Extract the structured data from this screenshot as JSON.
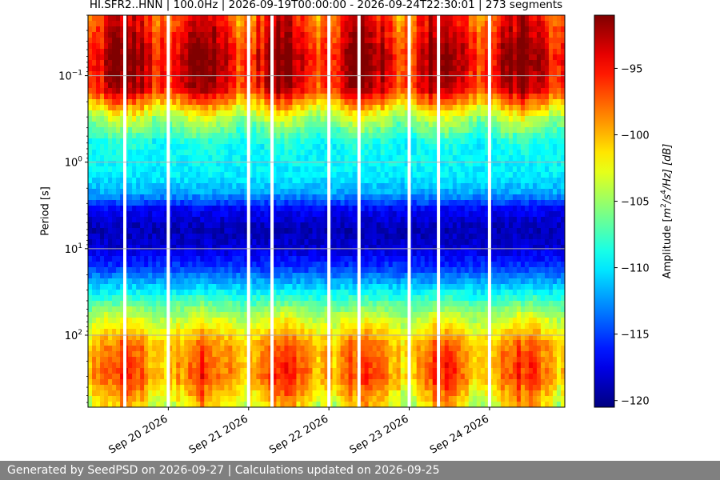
{
  "chart_data": {
    "type": "heatmap",
    "title": "HI.SFR2..HNN | 100.0Hz | 2026-09-19T00:00:00 - 2026-09-24T22:30:01 | 273 segments",
    "xlabel": "",
    "ylabel": "Period [s]",
    "y_scale": "log",
    "y_inverted": true,
    "ylim": [
      0.02,
      680
    ],
    "y_ticks": [
      {
        "value": 0.1,
        "base": "10",
        "exp": "−1"
      },
      {
        "value": 1,
        "base": "10",
        "exp": "0"
      },
      {
        "value": 10,
        "base": "10",
        "exp": "1"
      },
      {
        "value": 100,
        "base": "10",
        "exp": "2"
      }
    ],
    "xlim": [
      "2026-09-19T00:00",
      "2026-09-24T22:30"
    ],
    "x_ticks": [
      {
        "value": "2026-09-20T00:00",
        "label": "Sep 20 2026"
      },
      {
        "value": "2026-09-21T00:00",
        "label": "Sep 21 2026"
      },
      {
        "value": "2026-09-22T00:00",
        "label": "Sep 22 2026"
      },
      {
        "value": "2026-09-23T00:00",
        "label": "Sep 23 2026"
      },
      {
        "value": "2026-09-24T00:00",
        "label": "Sep 24 2026"
      }
    ],
    "grid": true,
    "gaps": [
      "2026-09-19T11:00",
      "2026-09-20T00:00",
      "2026-09-21T00:00",
      "2026-09-21T07:00",
      "2026-09-22T00:00",
      "2026-09-22T09:00",
      "2026-09-23T00:00",
      "2026-09-23T08:45",
      "2026-09-24T00:00"
    ],
    "colorbar": {
      "label_main": "Amplitude [",
      "label_m": "m",
      "label_m_exp": "2",
      "label_slash1": "/s",
      "label_s_exp": "4",
      "label_rest": "/Hz] [dB]",
      "colormap": "jet",
      "range": [
        -120.5,
        -91
      ],
      "ticks": [
        {
          "value": -95,
          "label": "−95"
        },
        {
          "value": -100,
          "label": "−100"
        },
        {
          "value": -105,
          "label": "−105"
        },
        {
          "value": -110,
          "label": "−110"
        },
        {
          "value": -115,
          "label": "−115"
        },
        {
          "value": -120,
          "label": "−120"
        }
      ]
    },
    "period_profile": [
      {
        "period": 0.02,
        "db": -96
      },
      {
        "period": 0.06,
        "db": -93
      },
      {
        "period": 0.14,
        "db": -94
      },
      {
        "period": 0.3,
        "db": -104
      },
      {
        "period": 0.6,
        "db": -109
      },
      {
        "period": 1.5,
        "db": -110
      },
      {
        "period": 2.3,
        "db": -112
      },
      {
        "period": 3.5,
        "db": -117
      },
      {
        "period": 6,
        "db": -119
      },
      {
        "period": 10,
        "db": -118
      },
      {
        "period": 17,
        "db": -115
      },
      {
        "period": 30,
        "db": -110
      },
      {
        "period": 60,
        "db": -104
      },
      {
        "period": 130,
        "db": -99
      },
      {
        "period": 300,
        "db": -98
      },
      {
        "period": 680,
        "db": -102
      }
    ]
  },
  "footer": {
    "text": "Generated by SeedPSD on 2026-09-27 | Calculations updated on 2026-09-25"
  }
}
